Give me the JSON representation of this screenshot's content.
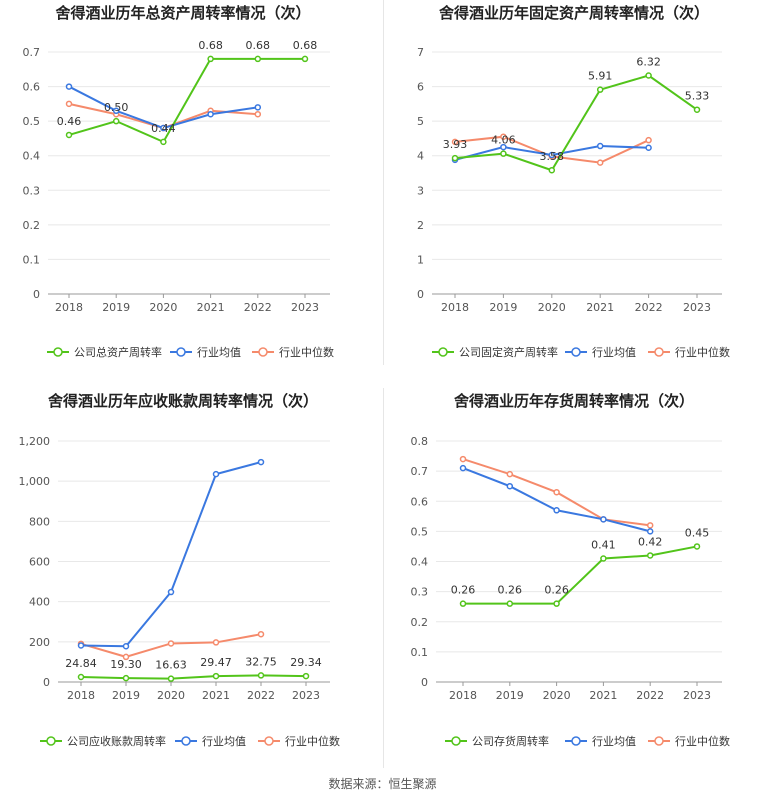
{
  "source": "数据来源：恒生聚源",
  "colors": {
    "company": "#52c41a",
    "avg": "#3a78e0",
    "median": "#f58a6b",
    "grid": "#e8e8e8",
    "axis": "#555555",
    "title": "#222222"
  },
  "chart_data": [
    {
      "type": "line",
      "title": "舍得酒业历年总资产周转率情况（次）",
      "categories": [
        "2018",
        "2019",
        "2020",
        "2021",
        "2022",
        "2023"
      ],
      "yticks": [
        "0",
        "0.1",
        "0.2",
        "0.3",
        "0.4",
        "0.5",
        "0.6",
        "0.7"
      ],
      "ylim": [
        0,
        0.7
      ],
      "series": [
        {
          "name": "公司总资产周转率",
          "key": "company",
          "values": [
            0.46,
            0.5,
            0.44,
            0.68,
            0.68,
            0.68
          ],
          "labels": [
            "0.46",
            "0.50",
            "0.44",
            "0.68",
            "0.68",
            "0.68"
          ]
        },
        {
          "name": "行业均值",
          "key": "avg",
          "values": [
            0.6,
            0.53,
            0.48,
            0.52,
            0.54,
            null
          ]
        },
        {
          "name": "行业中位数",
          "key": "median",
          "values": [
            0.55,
            0.52,
            0.48,
            0.53,
            0.52,
            null
          ]
        }
      ]
    },
    {
      "type": "line",
      "title": "舍得酒业历年固定资产周转率情况（次）",
      "categories": [
        "2018",
        "2019",
        "2020",
        "2021",
        "2022",
        "2023"
      ],
      "yticks": [
        "0",
        "1",
        "2",
        "3",
        "4",
        "5",
        "6",
        "7"
      ],
      "ylim": [
        0,
        7
      ],
      "series": [
        {
          "name": "公司固定资产周转率",
          "key": "company",
          "values": [
            3.93,
            4.06,
            3.58,
            5.91,
            6.32,
            5.33
          ],
          "labels": [
            "3.93",
            "4.06",
            "3.58",
            "5.91",
            "6.32",
            "5.33"
          ]
        },
        {
          "name": "行业均值",
          "key": "avg",
          "values": [
            3.88,
            4.25,
            4.02,
            4.28,
            4.23,
            null
          ]
        },
        {
          "name": "行业中位数",
          "key": "median",
          "values": [
            4.4,
            4.55,
            3.98,
            3.8,
            4.45,
            null
          ]
        }
      ]
    },
    {
      "type": "line",
      "title": "舍得酒业历年应收账款周转率情况（次）",
      "categories": [
        "2018",
        "2019",
        "2020",
        "2021",
        "2022",
        "2023"
      ],
      "yticks": [
        "0",
        "200",
        "400",
        "600",
        "800",
        "1,000",
        "1,200"
      ],
      "ylim": [
        0,
        1200
      ],
      "series": [
        {
          "name": "公司应收账款周转率",
          "key": "company",
          "values": [
            24.84,
            19.3,
            16.63,
            29.47,
            32.75,
            29.34
          ],
          "labels": [
            "24.84",
            "19.30",
            "16.63",
            "29.47",
            "32.75",
            "29.34"
          ]
        },
        {
          "name": "行业均值",
          "key": "avg",
          "values": [
            182,
            178,
            448,
            1035,
            1095,
            null
          ]
        },
        {
          "name": "行业中位数",
          "key": "median",
          "values": [
            190,
            125,
            192,
            197,
            238,
            null
          ]
        }
      ]
    },
    {
      "type": "line",
      "title": "舍得酒业历年存货周转率情况（次）",
      "categories": [
        "2018",
        "2019",
        "2020",
        "2021",
        "2022",
        "2023"
      ],
      "yticks": [
        "0",
        "0.1",
        "0.2",
        "0.3",
        "0.4",
        "0.5",
        "0.6",
        "0.7",
        "0.8"
      ],
      "ylim": [
        0,
        0.8
      ],
      "series": [
        {
          "name": "公司存货周转率",
          "key": "company",
          "values": [
            0.26,
            0.26,
            0.26,
            0.41,
            0.42,
            0.45
          ],
          "labels": [
            "0.26",
            "0.26",
            "0.26",
            "0.41",
            "0.42",
            "0.45"
          ]
        },
        {
          "name": "行业均值",
          "key": "avg",
          "values": [
            0.71,
            0.65,
            0.57,
            0.54,
            0.5,
            null
          ]
        },
        {
          "name": "行业中位数",
          "key": "median",
          "values": [
            0.74,
            0.69,
            0.63,
            0.54,
            0.52,
            null
          ]
        }
      ]
    }
  ]
}
